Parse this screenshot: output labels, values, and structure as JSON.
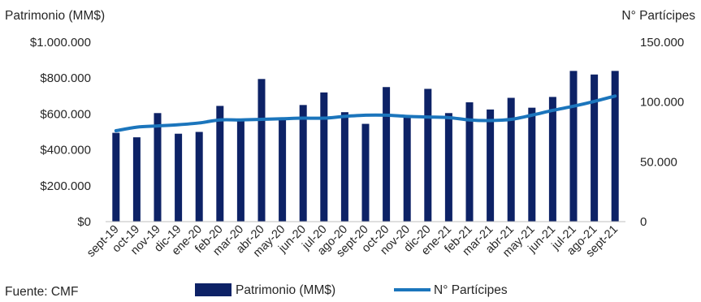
{
  "chart_data": {
    "type": "bar",
    "y_left_label": "Patrimonio (MM$)",
    "y_right_label": "N° Partícipes",
    "source": "Fuente: CMF",
    "categories": [
      "sept-19",
      "oct-19",
      "nov-19",
      "dic-19",
      "ene-20",
      "feb-20",
      "mar-20",
      "abr-20",
      "may-20",
      "jun-20",
      "jul-20",
      "ago-20",
      "sept-20",
      "oct-20",
      "nov-20",
      "dic-20",
      "ene-21",
      "feb-21",
      "mar-21",
      "abr-21",
      "may-21",
      "jun-21",
      "jul-21",
      "ago-21",
      "sept-21"
    ],
    "y_left_ticks": [
      "$0",
      "$200.000",
      "$400.000",
      "$600.000",
      "$800.000",
      "$1.000.000"
    ],
    "y_left_range": [
      0,
      1000000
    ],
    "y_right_ticks": [
      "0",
      "50.000",
      "100.000",
      "150.000"
    ],
    "y_right_range": [
      0,
      150000
    ],
    "grid": false,
    "legend_position": "bottom",
    "series": [
      {
        "name": "Patrimonio (MM$)",
        "type": "bar",
        "axis": "left",
        "color": "#0d2266",
        "values": [
          495000,
          470000,
          605000,
          490000,
          500000,
          645000,
          570000,
          795000,
          580000,
          650000,
          720000,
          610000,
          545000,
          750000,
          585000,
          740000,
          605000,
          665000,
          625000,
          690000,
          635000,
          695000,
          840000,
          820000,
          840000
        ]
      },
      {
        "name": "N° Partícipes",
        "type": "line",
        "axis": "right",
        "color": "#1b75bc",
        "values": [
          76000,
          79000,
          80000,
          81000,
          82500,
          85000,
          85000,
          85500,
          86000,
          86500,
          86500,
          88000,
          89000,
          89000,
          88000,
          87500,
          87000,
          85000,
          84500,
          85500,
          89000,
          93000,
          96500,
          100500,
          105000
        ]
      }
    ]
  }
}
